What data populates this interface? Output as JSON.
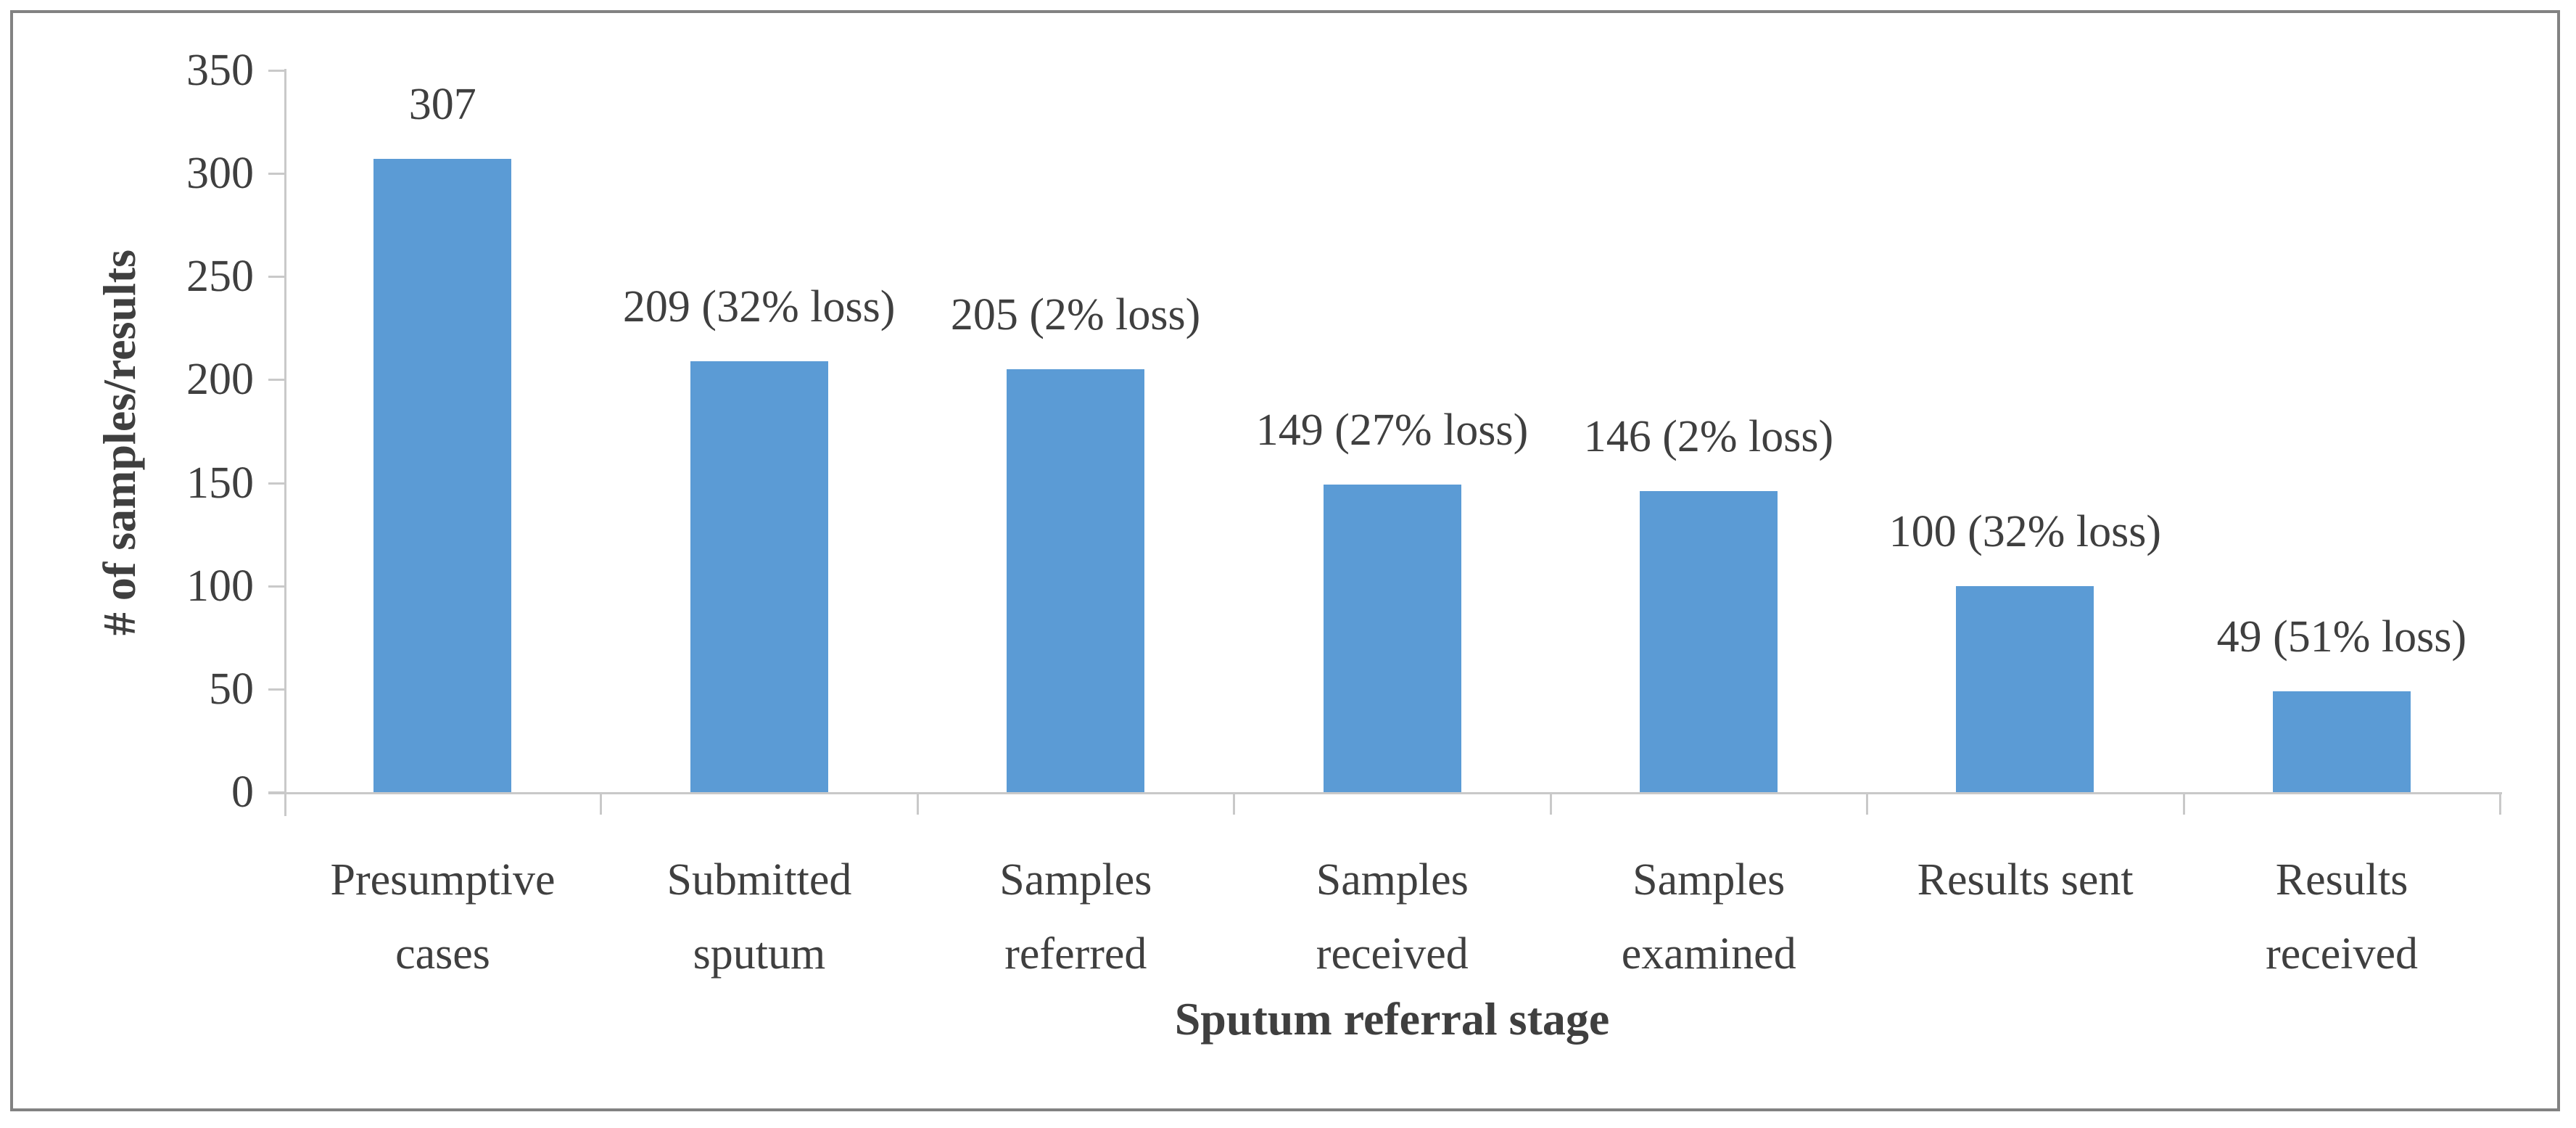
{
  "chart_data": {
    "type": "bar",
    "title": "",
    "xlabel": "Sputum referral stage",
    "ylabel": "# of samples/results",
    "categories": [
      "Presumptive\ncases",
      "Submitted\nsputum",
      "Samples\nreferred",
      "Samples\nreceived",
      "Samples\nexamined",
      "Results sent",
      "Results\nreceived"
    ],
    "values": [
      307,
      209,
      205,
      149,
      146,
      100,
      49
    ],
    "data_labels": [
      "307",
      "209 (32% loss)",
      "205 (2% loss)",
      "149 (27% loss)",
      "146 (2% loss)",
      "100 (32% loss)",
      "49 (51% loss)"
    ],
    "yticks": [
      0,
      50,
      100,
      150,
      200,
      250,
      300,
      350
    ],
    "ylim": [
      0,
      350
    ],
    "grid": false,
    "legend": "none",
    "colors": {
      "bar": "#5b9bd5",
      "axis": "#c9c9c9",
      "text": "#3f3f3f",
      "border": "#828282"
    }
  }
}
